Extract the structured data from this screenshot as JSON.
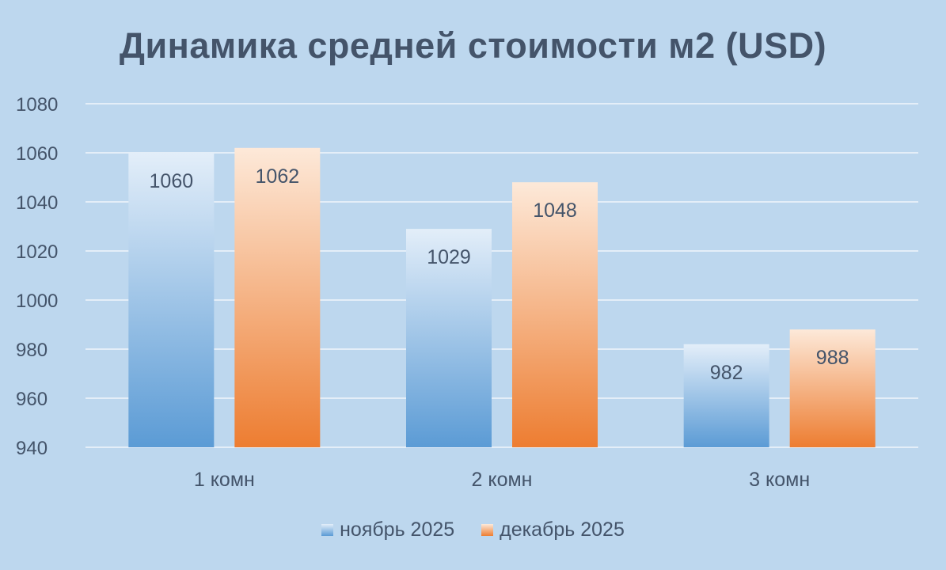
{
  "chart_data": {
    "type": "bar",
    "title": "Динамика средней стоимости м2 (USD)",
    "categories": [
      "1 комн",
      "2 комн",
      "3 комн"
    ],
    "series": [
      {
        "name": "ноябрь 2025",
        "values": [
          1060,
          1029,
          982
        ],
        "color_top": "#e3eef9",
        "color_bottom": "#5b9bd5"
      },
      {
        "name": "декабрь 2025",
        "values": [
          1062,
          1048,
          988
        ],
        "color_top": "#fde9d9",
        "color_bottom": "#ed7d31"
      }
    ],
    "ylim": [
      940,
      1080
    ],
    "yticks": [
      940,
      960,
      980,
      1000,
      1020,
      1040,
      1060,
      1080
    ],
    "grid": true,
    "legend": "bottom",
    "xlabel": "",
    "ylabel": ""
  }
}
